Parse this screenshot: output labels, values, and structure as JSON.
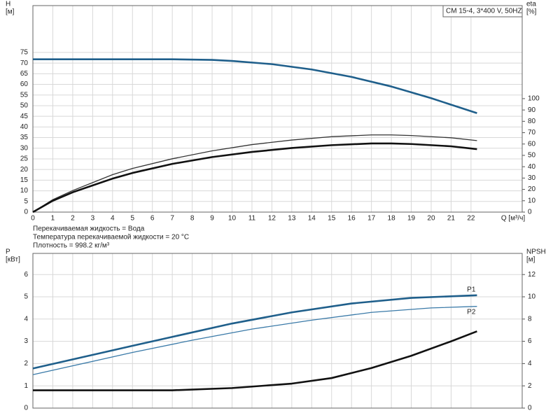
{
  "chart_data": [
    {
      "type": "line",
      "title": "CM 15-4, 3*400 V, 50HZ",
      "ylabel": [
        "H",
        "[м]"
      ],
      "y2label": [
        "eta",
        "[%]"
      ],
      "xlabel": "Q [м³/ч]",
      "notes": [
        "Перекачиваемая жидкость = Вода",
        "Температура перекачиваемой жидкости = 20 °C",
        "Плотность = 998.2 кг/м³"
      ],
      "xlim": [
        0,
        24.57
      ],
      "xticks": [
        0,
        1,
        2,
        3,
        4,
        5,
        6,
        7,
        8,
        9,
        10,
        11,
        12,
        13,
        14,
        15,
        16,
        17,
        18,
        19,
        20,
        21,
        22
      ],
      "ylim": [
        0,
        97
      ],
      "yticks": [
        0,
        5,
        10,
        15,
        20,
        25,
        30,
        35,
        40,
        45,
        50,
        55,
        60,
        65,
        70,
        75
      ],
      "y2lim": [
        0,
        182
      ],
      "y2ticks": [
        0,
        10,
        20,
        30,
        40,
        50,
        60,
        70,
        80,
        90,
        100
      ],
      "grid": true,
      "series": [
        {
          "color": "#1f5f8b",
          "style": "thick",
          "x": [
            0,
            5,
            7,
            9,
            10,
            12,
            14,
            16,
            18,
            20,
            22.3
          ],
          "values": [
            71.8,
            71.8,
            71.8,
            71.5,
            71,
            69.5,
            67,
            63.5,
            59,
            53.5,
            46.5
          ]
        },
        {
          "color": "#333333",
          "style": "thin",
          "axis": "y2",
          "x": [
            0,
            1,
            2,
            3,
            4,
            5,
            7,
            9,
            11,
            13,
            15,
            17,
            18,
            19,
            21,
            22.3
          ],
          "values": [
            0,
            11,
            19,
            26,
            33,
            38.5,
            47,
            54,
            59.5,
            63.5,
            66.5,
            68,
            68,
            67.5,
            65.5,
            63
          ]
        },
        {
          "color": "#111111",
          "style": "thick",
          "axis": "y2",
          "x": [
            0,
            1,
            2,
            3,
            4,
            5,
            7,
            9,
            11,
            13,
            15,
            17,
            18,
            19,
            21,
            22.3
          ],
          "values": [
            0,
            10,
            17.5,
            23.5,
            29.5,
            34.5,
            42.5,
            48.5,
            53,
            56.5,
            59,
            60.5,
            60.5,
            60,
            58,
            55.5
          ]
        }
      ]
    },
    {
      "type": "line",
      "ylabel": [
        "P",
        "[кВт]"
      ],
      "y2label": [
        "NPSH",
        "[м]"
      ],
      "xlim": [
        0,
        24.57
      ],
      "ylim": [
        0,
        6.95
      ],
      "yticks": [
        0,
        1,
        2,
        3,
        4,
        5,
        6
      ],
      "y2lim": [
        0,
        13.9
      ],
      "y2ticks": [
        0,
        2,
        4,
        6,
        8,
        10,
        12
      ],
      "grid": true,
      "series": [
        {
          "name": "P1",
          "color": "#1f5f8b",
          "style": "thick",
          "x": [
            0,
            5,
            7,
            10,
            13,
            16,
            19,
            22.3
          ],
          "values": [
            1.78,
            2.8,
            3.2,
            3.8,
            4.3,
            4.7,
            4.95,
            5.07
          ]
        },
        {
          "name": "P2",
          "color": "#3a7aa8",
          "style": "thin",
          "x": [
            0,
            5,
            8,
            11,
            14,
            17,
            20,
            22.3
          ],
          "values": [
            1.5,
            2.5,
            3.05,
            3.55,
            3.95,
            4.3,
            4.5,
            4.57
          ]
        },
        {
          "color": "#111111",
          "style": "thick",
          "axis": "y2",
          "x": [
            0,
            5,
            7,
            10,
            13,
            15,
            17,
            19,
            21,
            22.3
          ],
          "values": [
            1.6,
            1.6,
            1.6,
            1.8,
            2.2,
            2.7,
            3.6,
            4.7,
            6.0,
            6.9
          ]
        }
      ]
    }
  ]
}
